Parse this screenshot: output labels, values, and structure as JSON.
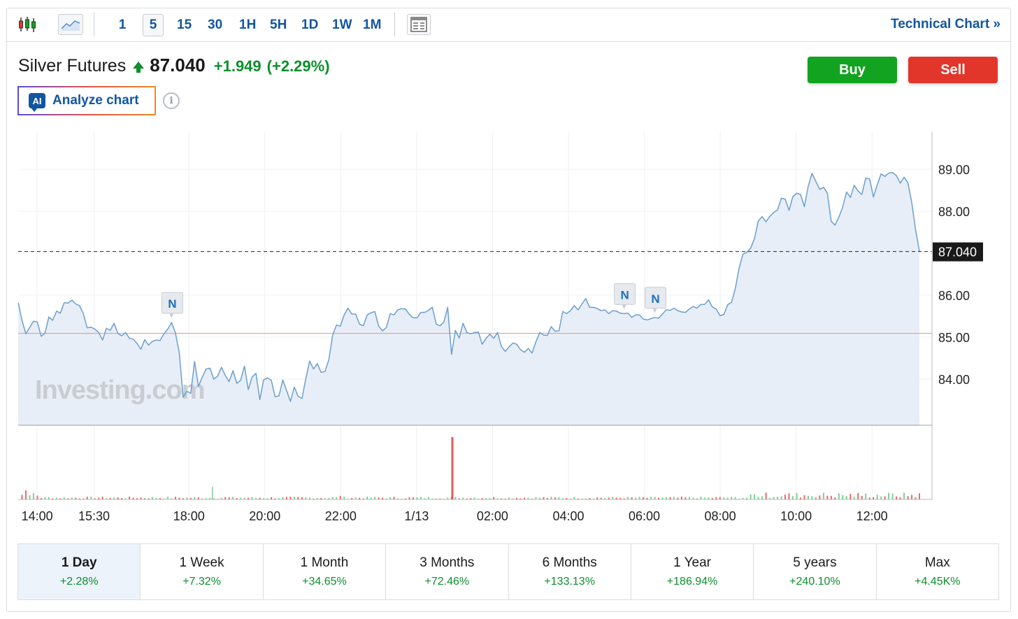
{
  "toolbar": {
    "chart_type_icons": [
      "candlestick-icon",
      "area-chart-icon"
    ],
    "timeframes": [
      "1",
      "5",
      "15",
      "30",
      "1H",
      "5H",
      "1D",
      "1W",
      "1M"
    ],
    "active_timeframe": "5",
    "layout_icon": "layout-icon",
    "technical_chart_label": "Technical Chart »"
  },
  "instrument": {
    "name": "Silver Futures",
    "price": "87.040",
    "change": "+1.949",
    "change_pct": "(+2.29%)",
    "direction_icon": "up-arrow-icon"
  },
  "actions": {
    "buy_label": "Buy",
    "sell_label": "Sell",
    "analyze_label": "Analyze chart",
    "ai_badge": "AI"
  },
  "colors": {
    "accent": "#1256a0",
    "up": "#0c8f2c",
    "buy": "#12a320",
    "sell": "#e3362b",
    "line": "#6a9fd0",
    "area": "#e8eef7",
    "prev_close_line": "#f28b82"
  },
  "chart_data": {
    "type": "area",
    "title": "",
    "watermark": "Investing.com",
    "x_tick_labels": [
      "14:00",
      "15:30",
      "18:00",
      "20:00",
      "22:00",
      "1/13",
      "02:00",
      "04:00",
      "06:00",
      "08:00",
      "10:00",
      "12:00"
    ],
    "y_tick_labels": [
      "89.00",
      "88.00",
      "86.00",
      "85.00",
      "84.00"
    ],
    "y_ticks": [
      89,
      88,
      86,
      85,
      84
    ],
    "ylim": [
      82.9,
      89.9
    ],
    "last_price": 87.04,
    "last_price_label": "87.040",
    "reference_line": 85.09,
    "grid": true,
    "price_series": {
      "name": "",
      "values": [
        85.82,
        85.4,
        85.08,
        85.23,
        85.38,
        85.36,
        85.02,
        85.1,
        85.48,
        85.4,
        85.62,
        85.57,
        85.82,
        85.81,
        85.88,
        85.79,
        85.75,
        85.56,
        85.22,
        85.24,
        85.19,
        85.11,
        84.93,
        85.21,
        85.16,
        85.33,
        85.09,
        85.03,
        85.11,
        84.97,
        84.95,
        84.85,
        84.71,
        84.94,
        84.81,
        84.9,
        84.93,
        84.92,
        85.08,
        85.19,
        85.35,
        85.1,
        84.63,
        83.57,
        83.71,
        83.66,
        84.42,
        83.83,
        84.04,
        84.24,
        84.26,
        84.0,
        84.07,
        84.28,
        84.09,
        83.94,
        84.2,
        83.9,
        83.97,
        84.31,
        83.75,
        84.05,
        84.14,
        83.51,
        83.98,
        84.03,
        83.97,
        83.58,
        83.6,
        83.98,
        83.72,
        83.47,
        83.81,
        83.59,
        83.54,
        84.01,
        84.43,
        84.24,
        84.37,
        84.16,
        84.18,
        84.46,
        85.05,
        85.29,
        85.26,
        85.53,
        85.69,
        85.55,
        85.55,
        85.31,
        85.27,
        85.53,
        85.58,
        85.61,
        85.26,
        85.15,
        85.23,
        85.56,
        85.53,
        85.65,
        85.68,
        85.67,
        85.54,
        85.46,
        85.46,
        85.59,
        85.59,
        85.64,
        85.71,
        85.31,
        85.27,
        85.36,
        85.71,
        84.59,
        85.16,
        84.98,
        85.33,
        85.11,
        85.08,
        85.11,
        85.12,
        84.83,
        84.97,
        85.07,
        84.97,
        85.11,
        84.78,
        84.66,
        84.77,
        84.86,
        84.83,
        84.7,
        84.64,
        84.73,
        84.62,
        84.89,
        85.11,
        85.05,
        85.04,
        85.25,
        85.14,
        85.15,
        85.61,
        85.56,
        85.63,
        85.75,
        85.65,
        85.79,
        85.92,
        85.71,
        85.71,
        85.68,
        85.63,
        85.65,
        85.56,
        85.63,
        85.62,
        85.57,
        85.56,
        85.57,
        85.47,
        85.53,
        85.53,
        85.43,
        85.41,
        85.44,
        85.47,
        85.45,
        85.55,
        85.65,
        85.64,
        85.69,
        85.63,
        85.6,
        85.59,
        85.67,
        85.73,
        85.69,
        85.78,
        85.78,
        85.89,
        85.72,
        85.67,
        85.51,
        85.54,
        85.77,
        85.83,
        86.16,
        86.65,
        86.98,
        87.02,
        87.12,
        87.35,
        87.77,
        87.87,
        87.75,
        87.88,
        87.97,
        88.03,
        88.31,
        88.29,
        88.02,
        88.35,
        88.43,
        88.4,
        88.11,
        88.59,
        88.9,
        88.71,
        88.52,
        88.57,
        88.43,
        87.76,
        87.67,
        87.86,
        88.1,
        88.46,
        88.33,
        88.62,
        88.48,
        88.4,
        88.79,
        88.77,
        88.34,
        88.63,
        88.89,
        88.83,
        88.91,
        88.92,
        88.85,
        88.67,
        88.81,
        88.68,
        88.21,
        87.56,
        87.04
      ]
    },
    "news_markers": [
      "N",
      "N",
      "N"
    ],
    "volume_series": {
      "name": "",
      "volume_spike_at": "00:45"
    }
  },
  "periods": [
    {
      "label": "1 Day",
      "change": "+2.28%",
      "active": true
    },
    {
      "label": "1 Week",
      "change": "+7.32%",
      "active": false
    },
    {
      "label": "1 Month",
      "change": "+34.65%",
      "active": false
    },
    {
      "label": "3 Months",
      "change": "+72.46%",
      "active": false
    },
    {
      "label": "6 Months",
      "change": "+133.13%",
      "active": false
    },
    {
      "label": "1 Year",
      "change": "+186.94%",
      "active": false
    },
    {
      "label": "5 years",
      "change": "+240.10%",
      "active": false
    },
    {
      "label": "Max",
      "change": "+4.45K%",
      "active": false
    }
  ]
}
